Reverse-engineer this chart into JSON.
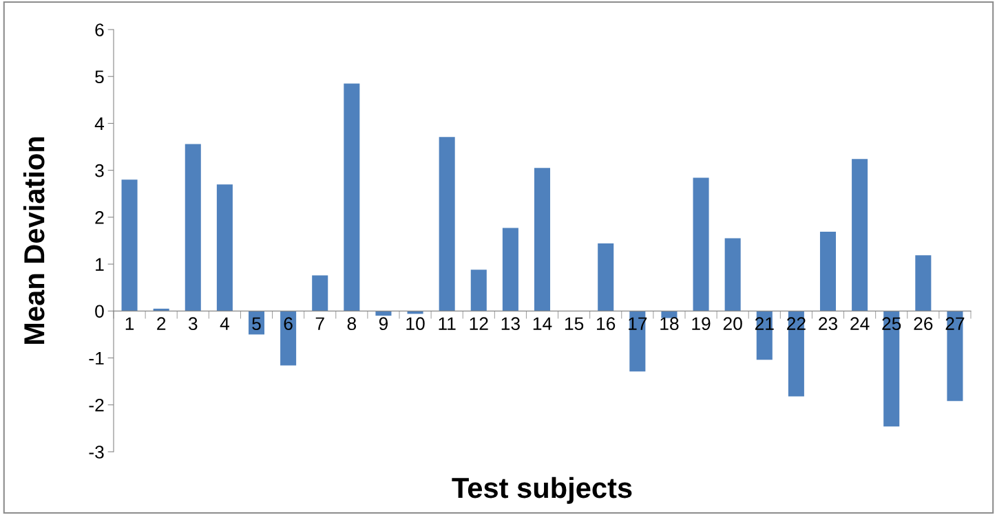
{
  "chart_data": {
    "type": "bar",
    "xlabel": "Test subjects",
    "ylabel": "Mean Deviation",
    "categories": [
      "1",
      "2",
      "3",
      "4",
      "5",
      "6",
      "7",
      "8",
      "9",
      "10",
      "11",
      "12",
      "13",
      "14",
      "15",
      "16",
      "17",
      "18",
      "19",
      "20",
      "21",
      "22",
      "23",
      "24",
      "25",
      "26",
      "27"
    ],
    "values": [
      2.8,
      0.05,
      3.56,
      2.7,
      -0.5,
      -1.16,
      0.76,
      4.85,
      -0.1,
      -0.06,
      3.71,
      0.88,
      1.77,
      3.05,
      0,
      1.44,
      -1.29,
      -0.15,
      2.84,
      1.55,
      -1.04,
      -1.82,
      1.69,
      3.24,
      -2.46,
      1.19,
      -1.92
    ],
    "color": "#4f81bd",
    "ylim": [
      -3,
      6
    ],
    "yticks": [
      -3,
      -2,
      -1,
      0,
      1,
      2,
      3,
      4,
      5,
      6
    ],
    "grid": false
  }
}
